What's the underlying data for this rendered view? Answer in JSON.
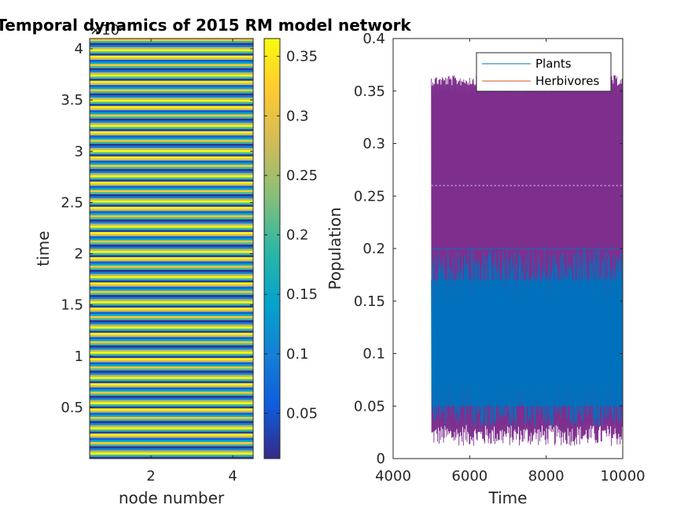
{
  "chart_data": [
    {
      "type": "heatmap",
      "title": "Temporal dynamics of 2015 RM model network",
      "xlabel": "node number",
      "ylabel": "time",
      "y_exponent_label": "×10⁴",
      "xlim": [
        0.5,
        4.5
      ],
      "ylim": [
        1,
        41000
      ],
      "xticks": [
        2,
        4
      ],
      "xtick_labels": [
        "2",
        "4"
      ],
      "yticks": [
        0.5,
        1,
        1.5,
        2,
        2.5,
        3,
        3.5,
        4
      ],
      "ytick_labels": [
        "0.5",
        "1",
        "1.5",
        "2",
        "2.5",
        "3",
        "3.5",
        "4"
      ],
      "colormap": "parula",
      "colorbar": {
        "range": [
          0.012,
          0.365
        ],
        "ticks": [
          0.05,
          0.1,
          0.15,
          0.2,
          0.25,
          0.3,
          0.35
        ],
        "tick_labels": [
          "0.05",
          "0.1",
          "0.15",
          "0.2",
          "0.25",
          "0.3",
          "0.35"
        ]
      },
      "stripe_cycle_values": [
        0.03,
        0.2,
        0.36,
        0.26,
        0.1,
        0.02,
        0.2,
        0.32,
        0.15,
        0.06,
        0.28,
        0.36
      ],
      "stripe_count": 200,
      "colors": [
        "#352a87",
        "#0f5cdd",
        "#1481d6",
        "#06a4ca",
        "#2eb7a4",
        "#87bf77",
        "#d1bb59",
        "#fec832",
        "#f9fb0e"
      ]
    },
    {
      "type": "line",
      "xlabel": "Time",
      "ylabel": "Population",
      "xlim": [
        4000,
        10000
      ],
      "ylim": [
        0,
        0.4
      ],
      "xticks": [
        4000,
        6000,
        8000,
        10000
      ],
      "xtick_labels": [
        "4000",
        "6000",
        "8000",
        "10000"
      ],
      "yticks": [
        0,
        0.05,
        0.1,
        0.15,
        0.2,
        0.25,
        0.3,
        0.35,
        0.4
      ],
      "ytick_labels": [
        "0",
        "0.05",
        "0.1",
        "0.15",
        "0.2",
        "0.25",
        "0.3",
        "0.35",
        "0.4"
      ],
      "legend_position": "top-right",
      "series": [
        {
          "name": "Plants",
          "color": "#0072bd",
          "x_range": [
            5000,
            10000
          ],
          "envelope_min": 0.03,
          "envelope_max": 0.2,
          "dense_band": [
            0.05,
            0.17
          ]
        },
        {
          "name": "Herbivores",
          "color": "#d95319",
          "overlap_color": "#7e2f8e",
          "x_range": [
            5000,
            10000
          ],
          "envelope_min": 0.012,
          "envelope_max": 0.365,
          "mid_level": 0.26
        }
      ]
    }
  ]
}
